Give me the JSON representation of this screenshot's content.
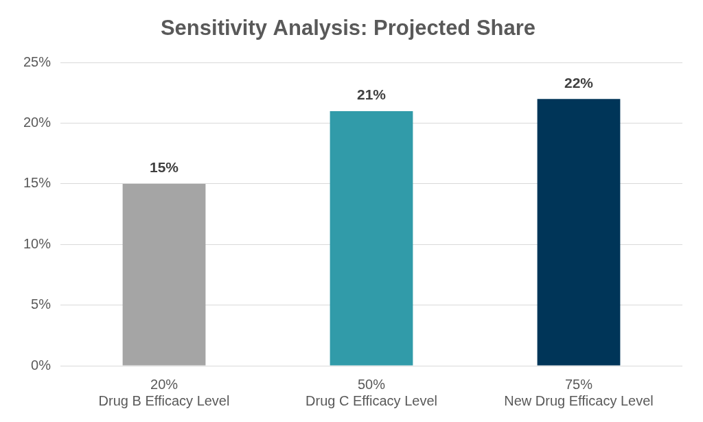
{
  "chart_data": {
    "type": "bar",
    "title": "Sensitivity Analysis: Projected Share",
    "categories": [
      [
        "20%",
        "Drug B Efficacy Level"
      ],
      [
        "50%",
        "Drug C Efficacy Level"
      ],
      [
        "75%",
        "New Drug Efficacy Level"
      ]
    ],
    "values": [
      15,
      21,
      22
    ],
    "value_labels": [
      "15%",
      "21%",
      "22%"
    ],
    "colors": [
      "#a5a5a5",
      "#319ba9",
      "#003558"
    ],
    "ylim": [
      0,
      25
    ],
    "yticks": [
      {
        "value": 0,
        "label": "0%"
      },
      {
        "value": 5,
        "label": "5%"
      },
      {
        "value": 10,
        "label": "10%"
      },
      {
        "value": 15,
        "label": "15%"
      },
      {
        "value": 20,
        "label": "20%"
      },
      {
        "value": 25,
        "label": "25%"
      }
    ],
    "grid": true,
    "data_labels": true
  }
}
